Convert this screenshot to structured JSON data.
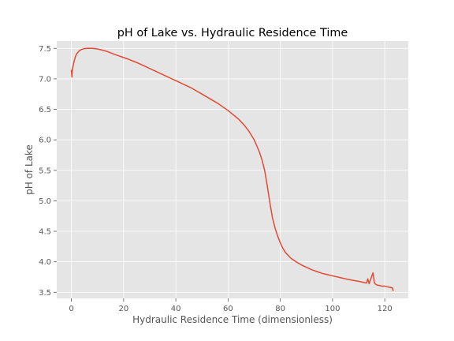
{
  "chart_data": {
    "type": "line",
    "title": "pH of Lake vs. Hydraulic Residence Time",
    "xlabel": "Hydraulic Residence Time (dimensionless)",
    "ylabel": "pH of Lake",
    "xlim": [
      -5.6,
      129
    ],
    "ylim": [
      3.4,
      7.62
    ],
    "xticks": [
      0,
      20,
      40,
      60,
      80,
      100,
      120
    ],
    "yticks": [
      3.5,
      4.0,
      4.5,
      5.0,
      5.5,
      6.0,
      6.5,
      7.0,
      7.5
    ],
    "ytick_labels": [
      "3.5",
      "4.0",
      "4.5",
      "5.0",
      "5.5",
      "6.0",
      "6.5",
      "7.0",
      "7.5"
    ],
    "grid": true,
    "series": [
      {
        "color": "#e24a33",
        "x": [
          0,
          0.2,
          0.4,
          0.6,
          1,
          1.5,
          2,
          3,
          4,
          5,
          6,
          7,
          8,
          9,
          10,
          12,
          14,
          16,
          18,
          20,
          22,
          24,
          26,
          28,
          30,
          32,
          34,
          36,
          38,
          40,
          42,
          44,
          46,
          48,
          50,
          52,
          54,
          56,
          58,
          60,
          62,
          64,
          66,
          68,
          70,
          71,
          72,
          73,
          74,
          75,
          76,
          77,
          78,
          79,
          80,
          81,
          82,
          84,
          86,
          88,
          90,
          92,
          94,
          96,
          98,
          100,
          102,
          104,
          106,
          108,
          110,
          112,
          113,
          113.5,
          114,
          114.5,
          115,
          115.5,
          116,
          116.5,
          117,
          118,
          119,
          120,
          121,
          122,
          123,
          123.2
        ],
        "values": [
          7.15,
          7.03,
          7.16,
          7.2,
          7.28,
          7.36,
          7.41,
          7.46,
          7.485,
          7.495,
          7.5,
          7.5,
          7.5,
          7.495,
          7.49,
          7.47,
          7.445,
          7.41,
          7.38,
          7.35,
          7.32,
          7.285,
          7.25,
          7.21,
          7.17,
          7.13,
          7.09,
          7.05,
          7.01,
          6.97,
          6.93,
          6.89,
          6.85,
          6.8,
          6.75,
          6.7,
          6.65,
          6.6,
          6.54,
          6.48,
          6.41,
          6.34,
          6.25,
          6.14,
          6.0,
          5.9,
          5.8,
          5.67,
          5.5,
          5.25,
          4.97,
          4.72,
          4.55,
          4.42,
          4.31,
          4.22,
          4.15,
          4.06,
          4.0,
          3.95,
          3.91,
          3.87,
          3.84,
          3.81,
          3.79,
          3.77,
          3.75,
          3.73,
          3.71,
          3.695,
          3.68,
          3.66,
          3.65,
          3.72,
          3.64,
          3.7,
          3.76,
          3.82,
          3.66,
          3.63,
          3.62,
          3.61,
          3.6,
          3.6,
          3.59,
          3.58,
          3.57,
          3.52
        ]
      }
    ]
  }
}
